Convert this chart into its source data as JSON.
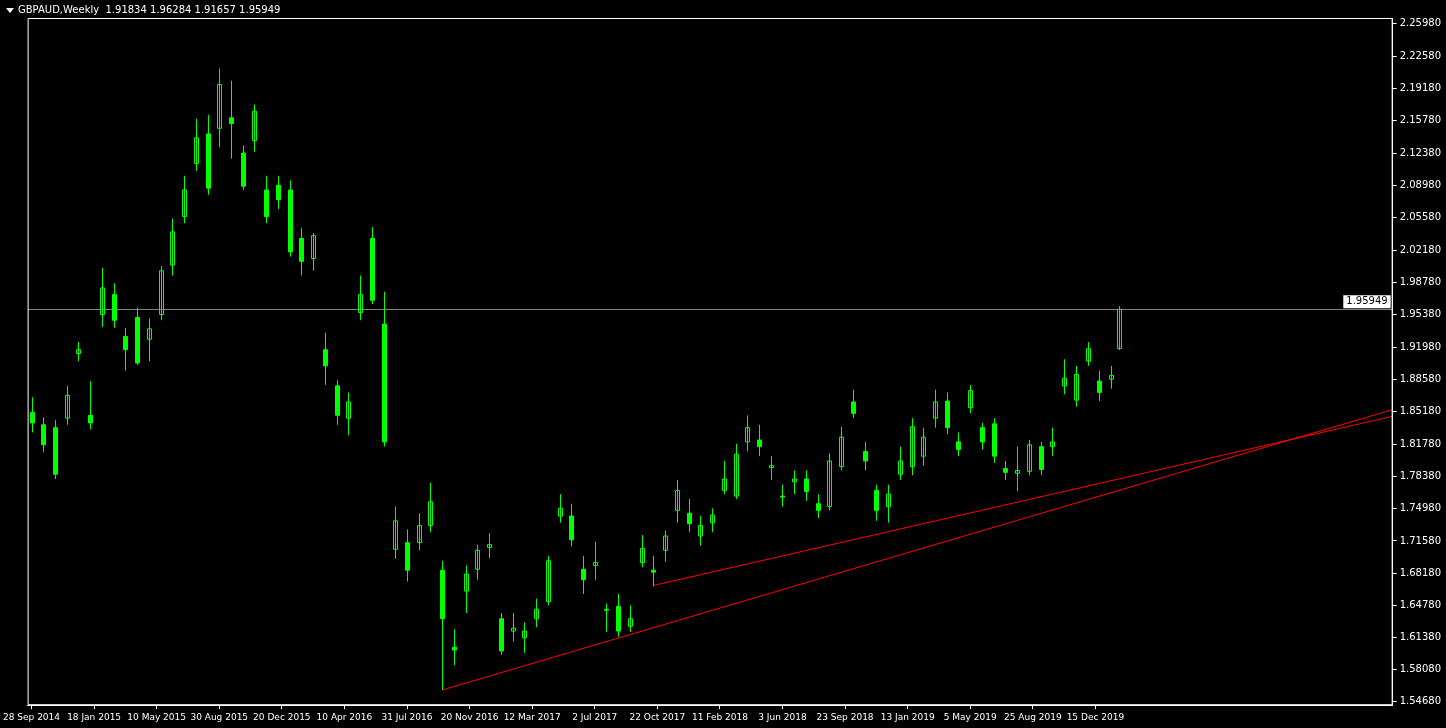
{
  "chart_data": {
    "type": "candlestick",
    "title": "GBPAUD,Weekly  1.91834 1.96284 1.91657 1.95949",
    "color": "#00ff00",
    "x": [
      "2014-09-28",
      "2014-10-19",
      "2014-11-09",
      "2014-11-30",
      "2014-12-21",
      "2015-01-11",
      "2015-02-01",
      "2015-02-22",
      "2015-03-15",
      "2015-04-05",
      "2015-04-26",
      "2015-05-17",
      "2015-06-07",
      "2015-06-28",
      "2015-07-19",
      "2015-08-09",
      "2015-08-30",
      "2015-09-20",
      "2015-10-11",
      "2015-11-01",
      "2015-11-22",
      "2015-12-13",
      "2016-01-03",
      "2016-01-24",
      "2016-02-14",
      "2016-03-06",
      "2016-03-27",
      "2016-04-17",
      "2016-05-08",
      "2016-05-29",
      "2016-06-19",
      "2016-07-10",
      "2016-07-31",
      "2016-08-21",
      "2016-09-11",
      "2016-10-02",
      "2016-10-23",
      "2016-11-13",
      "2016-12-04",
      "2016-12-25",
      "2017-01-15",
      "2017-02-05",
      "2017-02-26",
      "2017-03-19",
      "2017-04-09",
      "2017-04-30",
      "2017-05-21",
      "2017-06-11",
      "2017-07-02",
      "2017-07-23",
      "2017-08-13",
      "2017-09-03",
      "2017-09-24",
      "2017-10-15",
      "2017-11-05",
      "2017-11-26",
      "2017-12-17",
      "2018-01-07",
      "2018-01-28",
      "2018-02-18",
      "2018-03-11",
      "2018-04-01",
      "2018-04-22",
      "2018-05-13",
      "2018-06-03",
      "2018-06-24",
      "2018-07-15",
      "2018-08-05",
      "2018-08-26",
      "2018-09-16",
      "2018-10-07",
      "2018-10-28",
      "2018-11-18",
      "2018-12-09",
      "2018-12-30",
      "2019-01-20",
      "2019-02-10",
      "2019-03-03",
      "2019-03-24",
      "2019-04-14",
      "2019-05-05",
      "2019-05-26",
      "2019-06-16",
      "2019-07-07",
      "2019-07-28",
      "2019-08-18",
      "2019-09-08",
      "2019-09-29",
      "2019-10-20",
      "2019-11-10",
      "2019-12-01",
      "2019-12-22",
      "2020-01-12",
      "2020-01-26"
    ],
    "ohlc": [
      [
        1.851,
        1.867,
        1.83,
        1.84
      ],
      [
        1.838,
        1.846,
        1.809,
        1.817
      ],
      [
        1.835,
        1.843,
        1.781,
        1.786
      ],
      [
        1.845,
        1.879,
        1.838,
        1.869
      ],
      [
        1.913,
        1.925,
        1.905,
        1.917
      ],
      [
        1.848,
        1.884,
        1.833,
        1.84
      ],
      [
        1.954,
        2.003,
        1.941,
        1.982
      ],
      [
        1.975,
        1.987,
        1.94,
        1.948
      ],
      [
        1.931,
        1.94,
        1.895,
        1.917
      ],
      [
        1.951,
        1.961,
        1.901,
        1.903
      ],
      [
        1.928,
        1.95,
        1.905,
        1.939
      ],
      [
        1.954,
        2.005,
        1.948,
        2.0
      ],
      [
        2.006,
        2.055,
        1.995,
        2.041
      ],
      [
        2.057,
        2.1,
        2.05,
        2.085
      ],
      [
        2.113,
        2.16,
        2.105,
        2.14
      ],
      [
        2.144,
        2.164,
        2.08,
        2.087
      ],
      [
        2.15,
        2.213,
        2.13,
        2.196
      ],
      [
        2.161,
        2.2,
        2.118,
        2.155
      ],
      [
        2.124,
        2.132,
        2.085,
        2.089
      ],
      [
        2.137,
        2.175,
        2.125,
        2.168
      ],
      [
        2.085,
        2.1,
        2.05,
        2.057
      ],
      [
        2.09,
        2.1,
        2.065,
        2.075
      ],
      [
        2.085,
        2.095,
        2.015,
        2.02
      ],
      [
        2.034,
        2.045,
        1.995,
        2.01
      ],
      [
        2.013,
        2.04,
        2.0,
        2.037
      ],
      [
        1.917,
        1.935,
        1.88,
        1.9
      ],
      [
        1.879,
        1.885,
        1.838,
        1.848
      ],
      [
        1.845,
        1.872,
        1.827,
        1.862
      ],
      [
        1.956,
        1.995,
        1.948,
        1.975
      ],
      [
        2.034,
        2.046,
        1.965,
        1.969
      ],
      [
        1.944,
        1.978,
        1.815,
        1.82
      ],
      [
        1.707,
        1.752,
        1.697,
        1.737
      ],
      [
        1.714,
        1.728,
        1.673,
        1.685
      ],
      [
        1.714,
        1.745,
        1.706,
        1.732
      ],
      [
        1.732,
        1.777,
        1.725,
        1.757
      ],
      [
        1.685,
        1.695,
        1.559,
        1.634
      ],
      [
        1.604,
        1.623,
        1.585,
        1.601
      ],
      [
        1.663,
        1.69,
        1.64,
        1.681
      ],
      [
        1.686,
        1.712,
        1.675,
        1.706
      ],
      [
        1.709,
        1.724,
        1.698,
        1.712
      ],
      [
        1.634,
        1.64,
        1.596,
        1.6
      ],
      [
        1.621,
        1.64,
        1.61,
        1.624
      ],
      [
        1.614,
        1.63,
        1.598,
        1.621
      ],
      [
        1.634,
        1.655,
        1.625,
        1.644
      ],
      [
        1.652,
        1.7,
        1.648,
        1.695
      ],
      [
        1.742,
        1.765,
        1.735,
        1.75
      ],
      [
        1.742,
        1.755,
        1.71,
        1.717
      ],
      [
        1.686,
        1.7,
        1.66,
        1.675
      ],
      [
        1.69,
        1.715,
        1.675,
        1.693
      ],
      [
        1.644,
        1.65,
        1.62,
        1.643
      ],
      [
        1.647,
        1.66,
        1.615,
        1.621
      ],
      [
        1.626,
        1.648,
        1.62,
        1.634
      ],
      [
        1.693,
        1.722,
        1.688,
        1.708
      ],
      [
        1.685,
        1.7,
        1.668,
        1.683
      ],
      [
        1.706,
        1.727,
        1.694,
        1.721
      ],
      [
        1.748,
        1.78,
        1.735,
        1.769
      ],
      [
        1.745,
        1.76,
        1.725,
        1.734
      ],
      [
        1.721,
        1.742,
        1.711,
        1.732
      ],
      [
        1.735,
        1.75,
        1.725,
        1.743
      ],
      [
        1.769,
        1.8,
        1.765,
        1.781
      ],
      [
        1.763,
        1.818,
        1.76,
        1.807
      ],
      [
        1.82,
        1.848,
        1.81,
        1.835
      ],
      [
        1.822,
        1.838,
        1.805,
        1.815
      ],
      [
        1.793,
        1.805,
        1.78,
        1.795
      ],
      [
        1.763,
        1.775,
        1.752,
        1.762
      ],
      [
        1.778,
        1.79,
        1.765,
        1.781
      ],
      [
        1.781,
        1.79,
        1.758,
        1.768
      ],
      [
        1.755,
        1.765,
        1.74,
        1.748
      ],
      [
        1.752,
        1.808,
        1.748,
        1.8
      ],
      [
        1.794,
        1.836,
        1.79,
        1.825
      ],
      [
        1.862,
        1.875,
        1.845,
        1.85
      ],
      [
        1.81,
        1.82,
        1.79,
        1.8
      ],
      [
        1.769,
        1.775,
        1.737,
        1.748
      ],
      [
        1.752,
        1.775,
        1.735,
        1.765
      ],
      [
        1.786,
        1.815,
        1.78,
        1.8
      ],
      [
        1.794,
        1.845,
        1.785,
        1.836
      ],
      [
        1.805,
        1.835,
        1.795,
        1.825
      ],
      [
        1.845,
        1.875,
        1.835,
        1.862
      ],
      [
        1.863,
        1.872,
        1.828,
        1.835
      ],
      [
        1.82,
        1.83,
        1.805,
        1.812
      ],
      [
        1.856,
        1.88,
        1.85,
        1.874
      ],
      [
        1.835,
        1.84,
        1.812,
        1.82
      ],
      [
        1.839,
        1.845,
        1.798,
        1.805
      ],
      [
        1.792,
        1.8,
        1.78,
        1.788
      ],
      [
        1.787,
        1.815,
        1.768,
        1.79
      ],
      [
        1.789,
        1.822,
        1.785,
        1.817
      ],
      [
        1.815,
        1.82,
        1.785,
        1.791
      ],
      [
        1.815,
        1.835,
        1.805,
        1.82
      ],
      [
        1.879,
        1.907,
        1.87,
        1.887
      ],
      [
        1.864,
        1.9,
        1.857,
        1.891
      ],
      [
        1.905,
        1.925,
        1.9,
        1.918
      ],
      [
        1.884,
        1.895,
        1.863,
        1.872
      ],
      [
        1.886,
        1.9,
        1.876,
        1.89
      ],
      [
        1.91834,
        1.96284,
        1.91657,
        1.95949
      ]
    ],
    "series": [
      {
        "type": "line",
        "color": "#ff0000",
        "x": [
          "2016-10-02",
          "2021-05-30"
        ],
        "values": [
          1.559,
          1.854
        ]
      },
      {
        "type": "line",
        "color": "#ff0000",
        "x": [
          "2017-10-15",
          "2021-05-30"
        ],
        "values": [
          1.669,
          1.847
        ]
      }
    ],
    "ref_lines": [
      {
        "axis": "y",
        "value": 1.95949,
        "label": "1.95949",
        "color": "#808080"
      }
    ],
    "xlim": [
      "2014-09-21",
      "2021-05-30"
    ],
    "xticks": [
      {
        "value": "2014-09-28",
        "label": "28 Sep 2014"
      },
      {
        "value": "2015-01-18",
        "label": "18 Jan 2015"
      },
      {
        "value": "2015-05-10",
        "label": "10 May 2015"
      },
      {
        "value": "2015-08-30",
        "label": "30 Aug 2015"
      },
      {
        "value": "2015-12-20",
        "label": "20 Dec 2015"
      },
      {
        "value": "2016-04-10",
        "label": "10 Apr 2016"
      },
      {
        "value": "2016-07-31",
        "label": "31 Jul 2016"
      },
      {
        "value": "2016-11-20",
        "label": "20 Nov 2016"
      },
      {
        "value": "2017-03-12",
        "label": "12 Mar 2017"
      },
      {
        "value": "2017-07-02",
        "label": "2 Jul 2017"
      },
      {
        "value": "2017-10-22",
        "label": "22 Oct 2017"
      },
      {
        "value": "2018-02-11",
        "label": "11 Feb 2018"
      },
      {
        "value": "2018-06-03",
        "label": "3 Jun 2018"
      },
      {
        "value": "2018-09-23",
        "label": "23 Sep 2018"
      },
      {
        "value": "2019-01-13",
        "label": "13 Jan 2019"
      },
      {
        "value": "2019-05-05",
        "label": "5 May 2019"
      },
      {
        "value": "2019-08-25",
        "label": "25 Aug 2019"
      },
      {
        "value": "2019-12-15",
        "label": "15 Dec 2019"
      }
    ],
    "ylim": [
      1.543,
      2.266
    ],
    "yticks": [
      {
        "value": 2.2598,
        "label": "2.25980"
      },
      {
        "value": 2.2258,
        "label": "2.22580"
      },
      {
        "value": 2.1918,
        "label": "2.19180"
      },
      {
        "value": 2.1578,
        "label": "2.15780"
      },
      {
        "value": 2.1238,
        "label": "2.12380"
      },
      {
        "value": 2.0898,
        "label": "2.08980"
      },
      {
        "value": 2.0558,
        "label": "2.05580"
      },
      {
        "value": 2.0218,
        "label": "2.02180"
      },
      {
        "value": 1.9878,
        "label": "1.98780"
      },
      {
        "value": 1.9538,
        "label": "1.95380"
      },
      {
        "value": 1.9198,
        "label": "1.91980"
      },
      {
        "value": 1.8858,
        "label": "1.88580"
      },
      {
        "value": 1.8518,
        "label": "1.85180"
      },
      {
        "value": 1.8178,
        "label": "1.81780"
      },
      {
        "value": 1.7838,
        "label": "1.78380"
      },
      {
        "value": 1.7498,
        "label": "1.74980"
      },
      {
        "value": 1.7158,
        "label": "1.71580"
      },
      {
        "value": 1.6818,
        "label": "1.68180"
      },
      {
        "value": 1.6478,
        "label": "1.64780"
      },
      {
        "value": 1.6138,
        "label": "1.61380"
      },
      {
        "value": 1.5808,
        "label": "1.58080"
      },
      {
        "value": 1.5468,
        "label": "1.54680"
      }
    ],
    "legend": false
  }
}
